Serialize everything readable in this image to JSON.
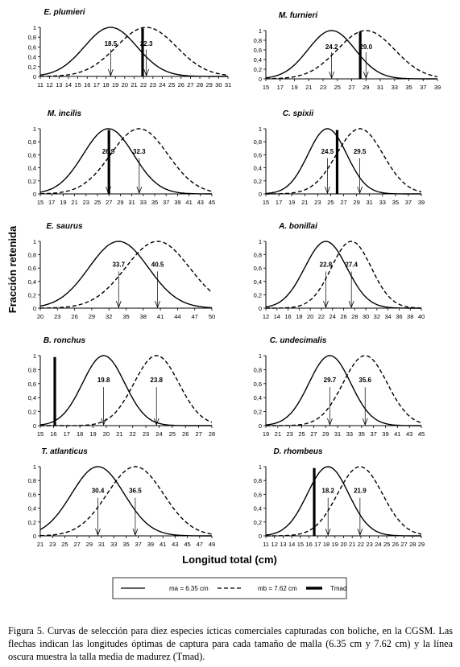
{
  "figure": {
    "ylabel": "Fracción retenida",
    "xlabel": "Longitud total (cm)",
    "legend": {
      "a": "ma = 6.35 cm",
      "b": "mb = 7.62 cm",
      "t": "Tmad"
    },
    "caption": "Figura 5. Curvas de selección para diez especies ícticas comerciales capturadas con boliche, en la CGSM. Las flechas indican las longitudes óptimas de captura para cada tamaño de malla (6.35 cm y 7.62 cm) y la línea oscura muestra la talla media de madurez (Tmad)."
  },
  "chart_data": [
    {
      "type": "line",
      "title": "E. plumieri",
      "xticks": [
        11,
        12,
        13,
        14,
        15,
        16,
        17,
        18,
        19,
        20,
        21,
        22,
        23,
        24,
        25,
        26,
        27,
        28,
        29,
        30,
        31
      ],
      "yticks": [
        "0",
        "0,2",
        "0,4",
        "0,6",
        "0,8",
        "1"
      ],
      "ylim": [
        0,
        1
      ],
      "series": [
        {
          "name": "ma = 6.35 cm",
          "peak": 18.5,
          "sd": 2.8
        },
        {
          "name": "mb = 7.62 cm",
          "peak": 22.3,
          "sd": 3.2
        }
      ],
      "optima": [
        "18.5",
        "22.3"
      ],
      "tmad": 21.9
    },
    {
      "type": "line",
      "title": "M. furnieri",
      "xticks": [
        15,
        17,
        19,
        21,
        23,
        25,
        27,
        29,
        31,
        33,
        35,
        37,
        39
      ],
      "yticks": [
        "0",
        "0,2",
        "0,4",
        "0,6",
        "0,8",
        "1"
      ],
      "ylim": [
        0,
        1
      ],
      "series": [
        {
          "name": "ma = 6.35 cm",
          "peak": 24.2,
          "sd": 3.3
        },
        {
          "name": "mb = 7.62 cm",
          "peak": 29.0,
          "sd": 4.0
        }
      ],
      "optima": [
        "24.2",
        "29.0"
      ],
      "tmad": 28.2
    },
    {
      "type": "line",
      "title": "M. incilis",
      "xticks": [
        15,
        17,
        19,
        21,
        23,
        25,
        27,
        29,
        31,
        33,
        35,
        37,
        39,
        41,
        43,
        45
      ],
      "yticks": [
        "0",
        "0,2",
        "0,4",
        "0,6",
        "0,8",
        "1"
      ],
      "ylim": [
        0,
        1
      ],
      "series": [
        {
          "name": "ma = 6.35 cm",
          "peak": 26.9,
          "sd": 4.4
        },
        {
          "name": "mb = 7.62 cm",
          "peak": 32.3,
          "sd": 5.0
        }
      ],
      "optima": [
        "26.9",
        "32.3"
      ],
      "tmad": 27.0
    },
    {
      "type": "line",
      "title": "C. spixii",
      "xticks": [
        15,
        17,
        19,
        21,
        23,
        25,
        27,
        29,
        31,
        33,
        35,
        37,
        39
      ],
      "yticks": [
        "0",
        "0,2",
        "0,4",
        "0,6",
        "0,8",
        "1"
      ],
      "ylim": [
        0,
        1
      ],
      "series": [
        {
          "name": "ma = 6.35 cm",
          "peak": 24.5,
          "sd": 3.0
        },
        {
          "name": "mb = 7.62 cm",
          "peak": 29.5,
          "sd": 3.6
        }
      ],
      "optima": [
        "24.5",
        "29.5"
      ],
      "tmad": 26.0
    },
    {
      "type": "line",
      "title": "E. saurus",
      "xticks": [
        20,
        23,
        26,
        29,
        32,
        35,
        38,
        41,
        44,
        47,
        50
      ],
      "yticks": [
        "0",
        "0,2",
        "0,4",
        "0,6",
        "0,8",
        "1"
      ],
      "ylim": [
        0,
        1
      ],
      "series": [
        {
          "name": "ma = 6.35 cm",
          "peak": 33.7,
          "sd": 5.2
        },
        {
          "name": "mb = 7.62 cm",
          "peak": 40.5,
          "sd": 5.6
        }
      ],
      "optima": [
        "33.7",
        "40.5"
      ],
      "tmad": null
    },
    {
      "type": "line",
      "title": "A. bonillai",
      "xticks": [
        12,
        14,
        16,
        18,
        20,
        22,
        24,
        26,
        28,
        30,
        32,
        34,
        36,
        38,
        40
      ],
      "yticks": [
        "0",
        "0,2",
        "0,4",
        "0,6",
        "0,8",
        "1"
      ],
      "ylim": [
        0,
        1
      ],
      "series": [
        {
          "name": "ma = 6.35 cm",
          "peak": 22.8,
          "sd": 3.8
        },
        {
          "name": "mb = 7.62 cm",
          "peak": 27.4,
          "sd": 3.6
        }
      ],
      "optima": [
        "22.8",
        "27.4"
      ],
      "tmad": null
    },
    {
      "type": "line",
      "title": "B. ronchus",
      "xticks": [
        15,
        16,
        17,
        18,
        19,
        20,
        21,
        22,
        23,
        24,
        25,
        26,
        27,
        28
      ],
      "yticks": [
        "0",
        "0,2",
        "0,4",
        "0,6",
        "0,8",
        "1"
      ],
      "ylim": [
        0,
        1
      ],
      "series": [
        {
          "name": "ma = 6.35 cm",
          "peak": 19.8,
          "sd": 1.6
        },
        {
          "name": "mb = 7.62 cm",
          "peak": 23.8,
          "sd": 1.7
        }
      ],
      "optima": [
        "19.8",
        "23.8"
      ],
      "tmad": 16.1
    },
    {
      "type": "line",
      "title": "C. undecimalis",
      "xticks": [
        19,
        21,
        23,
        25,
        27,
        29,
        31,
        33,
        35,
        37,
        39,
        41,
        43,
        45
      ],
      "yticks": [
        "0",
        "0,2",
        "0,4",
        "0,6",
        "0,8",
        "1"
      ],
      "ylim": [
        0,
        1
      ],
      "series": [
        {
          "name": "ma = 6.35 cm",
          "peak": 29.7,
          "sd": 3.5
        },
        {
          "name": "mb = 7.62 cm",
          "peak": 35.6,
          "sd": 3.7
        }
      ],
      "optima": [
        "29.7",
        "35.6"
      ],
      "tmad": null
    },
    {
      "type": "line",
      "title": "T. atlanticus",
      "xticks": [
        21,
        23,
        25,
        27,
        29,
        31,
        33,
        35,
        37,
        39,
        41,
        43,
        45,
        47,
        49
      ],
      "yticks": [
        "0",
        "0,2",
        "0,4",
        "0,6",
        "0,8",
        "1"
      ],
      "ylim": [
        0,
        1
      ],
      "series": [
        {
          "name": "ma = 6.35 cm",
          "peak": 30.4,
          "sd": 4.3
        },
        {
          "name": "mb = 7.62 cm",
          "peak": 36.5,
          "sd": 4.6
        }
      ],
      "optima": [
        "30.4",
        "36.5"
      ],
      "tmad": null
    },
    {
      "type": "line",
      "title": "D. rhombeus",
      "xticks": [
        11,
        12,
        13,
        14,
        15,
        16,
        17,
        18,
        19,
        20,
        21,
        22,
        23,
        24,
        25,
        26,
        27,
        28,
        29
      ],
      "yticks": [
        "0",
        "0,2",
        "0,4",
        "0,6",
        "0,8",
        "1"
      ],
      "ylim": [
        0,
        1
      ],
      "series": [
        {
          "name": "ma = 6.35 cm",
          "peak": 18.2,
          "sd": 2.4
        },
        {
          "name": "mb = 7.62 cm",
          "peak": 21.9,
          "sd": 2.6
        }
      ],
      "optima": [
        "18.2",
        "21.9"
      ],
      "tmad": 16.6
    }
  ]
}
